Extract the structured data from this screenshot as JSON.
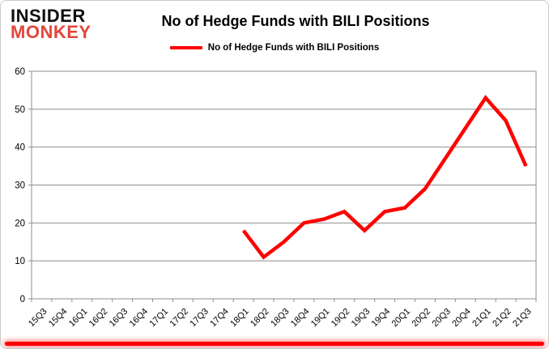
{
  "logo": {
    "line1": "INSIDER",
    "line2": "MONKEY"
  },
  "title": "No of Hedge Funds with BILI Positions",
  "legend": {
    "label": "No of Hedge Funds with BILI Positions",
    "line_color": "#fe0000"
  },
  "colors": {
    "line": "#fe0000",
    "grid": "#8f8f8f",
    "axis_text": "#000000",
    "logo_red": "#e2463a",
    "bottom_bar": "#fe0000"
  },
  "chart_data": {
    "type": "line",
    "title": "No of Hedge Funds with BILI Positions",
    "xlabel": "",
    "ylabel": "",
    "ylim": [
      0,
      60
    ],
    "yticks": [
      0,
      10,
      20,
      30,
      40,
      50,
      60
    ],
    "grid": true,
    "legend_position": "top",
    "categories": [
      "15Q3",
      "15Q4",
      "16Q1",
      "16Q2",
      "16Q3",
      "16Q4",
      "17Q1",
      "17Q2",
      "17Q3",
      "17Q4",
      "18Q1",
      "18Q2",
      "18Q3",
      "18Q4",
      "19Q1",
      "19Q2",
      "19Q3",
      "19Q4",
      "20Q1",
      "20Q2",
      "20Q3",
      "20Q4",
      "21Q1",
      "21Q2",
      "21Q3"
    ],
    "series": [
      {
        "name": "No of Hedge Funds with BILI Positions",
        "color": "#fe0000",
        "values": [
          null,
          null,
          null,
          null,
          null,
          null,
          null,
          null,
          null,
          null,
          18,
          11,
          15,
          20,
          21,
          23,
          18,
          23,
          24,
          29,
          37,
          45,
          53,
          47,
          35
        ]
      }
    ]
  }
}
